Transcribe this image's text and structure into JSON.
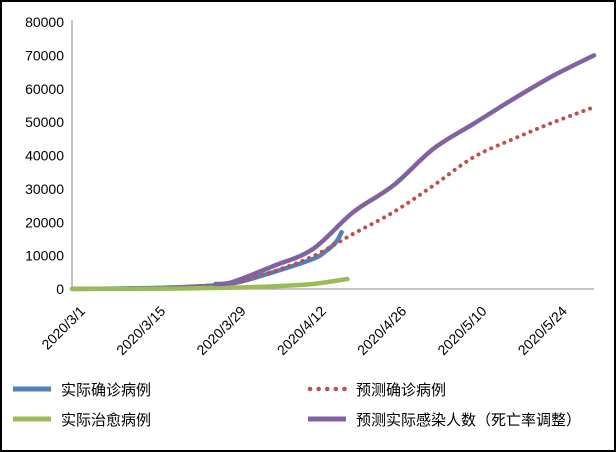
{
  "window": {
    "background": "#ffffff",
    "border_color": "#000000"
  },
  "chart_data": {
    "type": "line",
    "title": "",
    "xlabel": "",
    "ylabel": "",
    "grid": false,
    "axis_color": "#A3A3A3",
    "legend_position": "bottom-two-columns",
    "x_axis": {
      "start": "2020/3/1",
      "end": "2020/5/31",
      "tick_labels": [
        "2020/3/1",
        "2020/3/15",
        "2020/3/29",
        "2020/4/12",
        "2020/4/26",
        "2020/5/10",
        "2020/5/24"
      ],
      "tick_rotation_deg": -45
    },
    "y_axis": {
      "min": 0,
      "max": 80000,
      "step": 10000,
      "tick_labels": [
        "0",
        "10000",
        "20000",
        "30000",
        "40000",
        "50000",
        "60000",
        "70000",
        "80000"
      ]
    },
    "series": [
      {
        "name": "实际确诊病例",
        "color": "#4F81BD",
        "style": "solid",
        "points": [
          [
            "2020/3/1",
            50
          ],
          [
            "2020/3/8",
            120
          ],
          [
            "2020/3/15",
            300
          ],
          [
            "2020/3/22",
            700
          ],
          [
            "2020/3/29",
            1700
          ],
          [
            "2020/4/5",
            5000
          ],
          [
            "2020/4/12",
            9000
          ],
          [
            "2020/4/14",
            11000
          ],
          [
            "2020/4/16",
            14000
          ],
          [
            "2020/4/17",
            17000
          ]
        ]
      },
      {
        "name": "预测确诊病例",
        "color": "#C0504D",
        "style": "dotted",
        "points": [
          [
            "2020/3/1",
            50
          ],
          [
            "2020/3/8",
            130
          ],
          [
            "2020/3/15",
            320
          ],
          [
            "2020/3/22",
            750
          ],
          [
            "2020/3/29",
            1700
          ],
          [
            "2020/4/5",
            5200
          ],
          [
            "2020/4/12",
            9800
          ],
          [
            "2020/4/19",
            16500
          ],
          [
            "2020/4/26",
            23000
          ],
          [
            "2020/5/3",
            31000
          ],
          [
            "2020/5/10",
            39500
          ],
          [
            "2020/5/17",
            45000
          ],
          [
            "2020/5/24",
            50000
          ],
          [
            "2020/5/31",
            54500
          ]
        ]
      },
      {
        "name": "实际治愈病例",
        "color": "#9BBB59",
        "style": "solid",
        "points": [
          [
            "2020/3/1",
            10
          ],
          [
            "2020/3/8",
            30
          ],
          [
            "2020/3/15",
            80
          ],
          [
            "2020/3/22",
            200
          ],
          [
            "2020/3/29",
            400
          ],
          [
            "2020/4/5",
            800
          ],
          [
            "2020/4/12",
            1500
          ],
          [
            "2020/4/18",
            3000
          ]
        ]
      },
      {
        "name": "预测实际感染人数（死亡率调整）",
        "color": "#8064A2",
        "style": "solid",
        "points": [
          [
            "2020/3/26",
            1500
          ],
          [
            "2020/3/29",
            2100
          ],
          [
            "2020/4/5",
            6800
          ],
          [
            "2020/4/12",
            12000
          ],
          [
            "2020/4/19",
            23000
          ],
          [
            "2020/4/26",
            31000
          ],
          [
            "2020/5/3",
            42000
          ],
          [
            "2020/5/10",
            49500
          ],
          [
            "2020/5/17",
            57000
          ],
          [
            "2020/5/24",
            64000
          ],
          [
            "2020/5/31",
            70000
          ]
        ]
      }
    ]
  }
}
